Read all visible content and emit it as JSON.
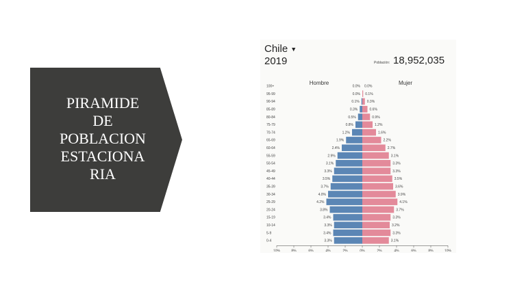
{
  "slide": {
    "title": "PIRAMIDE\nDE\nPOBLACION\nESTACIONA\nRIA"
  },
  "header": {
    "country": "Chile",
    "caret_icon": "caret-down-icon",
    "year": "2019",
    "population_label": "Población:",
    "population_value": "18,952,035"
  },
  "colors": {
    "male": "#5b86b5",
    "female": "#e38a9a",
    "title_block": "#3d3d3b"
  },
  "chart_data": {
    "type": "bar",
    "orientation": "horizontal-diverging",
    "series_labels": {
      "left": "Hombre",
      "right": "Mujer"
    },
    "categories": [
      "100+",
      "95-99",
      "90-94",
      "85-89",
      "80-84",
      "75-79",
      "70-74",
      "65-69",
      "60-64",
      "55-59",
      "50-54",
      "45-49",
      "40-44",
      "35-39",
      "30-34",
      "25-29",
      "20-24",
      "15-19",
      "10-14",
      "5-9",
      "0-4"
    ],
    "series": [
      {
        "name": "Hombre",
        "values": [
          0.0,
          0.0,
          0.1,
          0.3,
          0.5,
          0.8,
          1.2,
          1.9,
          2.4,
          2.9,
          3.1,
          3.3,
          3.5,
          3.7,
          4.0,
          4.2,
          3.8,
          3.4,
          3.3,
          3.4,
          3.3
        ],
        "labels": [
          "0.0%",
          "0.0%",
          "0.1%",
          "0.3%",
          "0.5%",
          "0.8%",
          "1.2%",
          "1.9%",
          "2.4%",
          "2.9%",
          "3.1%",
          "3.3%",
          "3.5%",
          "3.7%",
          "4.0%",
          "4.2%",
          "3.8%",
          "3.4%",
          "3.3%",
          "3.4%",
          "3.3%"
        ]
      },
      {
        "name": "Mujer",
        "values": [
          0.0,
          0.1,
          0.3,
          0.6,
          0.9,
          1.2,
          1.6,
          2.2,
          2.7,
          3.1,
          3.3,
          3.3,
          3.5,
          3.6,
          3.9,
          4.1,
          3.7,
          3.3,
          3.2,
          3.3,
          3.1
        ],
        "labels": [
          "0.0%",
          "0.1%",
          "0.3%",
          "0.6%",
          "0.9%",
          "1.2%",
          "1.6%",
          "2.2%",
          "2.7%",
          "3.1%",
          "3.3%",
          "3.3%",
          "3.5%",
          "3.6%",
          "3.9%",
          "4.1%",
          "3.7%",
          "3.3%",
          "3.2%",
          "3.3%",
          "3.1%"
        ]
      }
    ],
    "x_ticks": [
      "10%",
      "8%",
      "6%",
      "4%",
      "2%",
      "0%",
      "2%",
      "4%",
      "6%",
      "8%",
      "10%"
    ],
    "xlim": [
      -10,
      10
    ]
  }
}
